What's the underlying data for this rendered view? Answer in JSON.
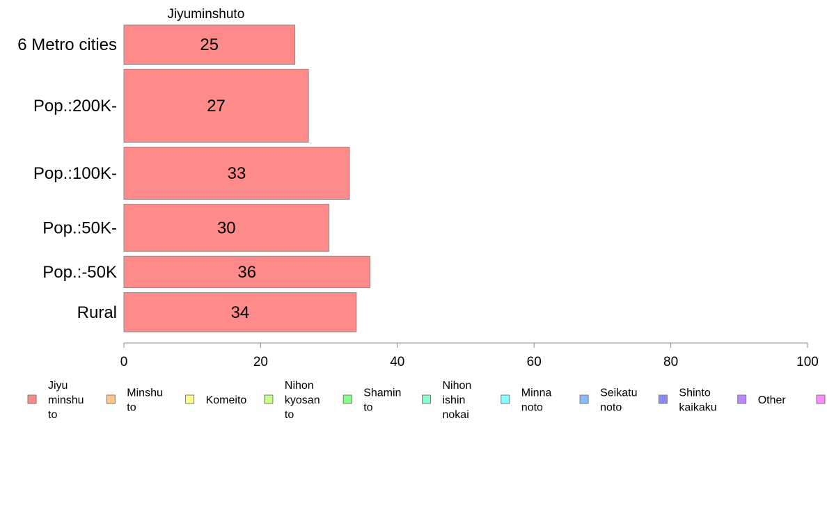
{
  "chart_data": {
    "type": "bar",
    "orientation": "horizontal",
    "title": "Jiyuminshuto",
    "categories": [
      "6 Metro cities",
      "Pop.:200K-",
      "Pop.:100K-",
      "Pop.:50K-",
      "Pop.:-50K",
      "Rural"
    ],
    "category_weights": [
      0.136,
      0.24,
      0.176,
      0.16,
      0.112,
      0.136
    ],
    "values": [
      25,
      27,
      33,
      30,
      36,
      34
    ],
    "value_labels": [
      "25",
      "27",
      "33",
      "30",
      "36",
      "34"
    ],
    "bar_color": "#ff8a8a",
    "bar_stroke": "#8c8c8c",
    "xlim": [
      0,
      100
    ],
    "x_ticks": [
      0,
      20,
      40,
      60,
      80,
      100
    ],
    "x_tick_labels": [
      "0",
      "20",
      "40",
      "60",
      "80",
      "100"
    ],
    "xlabel": "",
    "ylabel": "",
    "grid": false,
    "legend": {
      "placement": "bottom",
      "items": [
        {
          "lines": [
            "Jiyu",
            "minshu",
            "to"
          ],
          "color": "#ff8a8a"
        },
        {
          "lines": [
            "Minshu",
            "to"
          ],
          "color": "#ffc888"
        },
        {
          "lines": [
            "Komeito"
          ],
          "color": "#ffff88"
        },
        {
          "lines": [
            "Nihon",
            "kyosan",
            "to"
          ],
          "color": "#caff88"
        },
        {
          "lines": [
            "Shamin",
            "to"
          ],
          "color": "#88ff88"
        },
        {
          "lines": [
            "Nihon",
            "ishin",
            "nokai"
          ],
          "color": "#88ffcc"
        },
        {
          "lines": [
            "Minna",
            "noto"
          ],
          "color": "#88ffff"
        },
        {
          "lines": [
            "Seikatu",
            "noto"
          ],
          "color": "#88bbff"
        },
        {
          "lines": [
            "Shinto",
            "kaikaku"
          ],
          "color": "#8888ff"
        },
        {
          "lines": [
            "Other"
          ],
          "color": "#bb88ff"
        },
        {
          "lines": [],
          "color": "#ff88ff"
        }
      ]
    }
  }
}
